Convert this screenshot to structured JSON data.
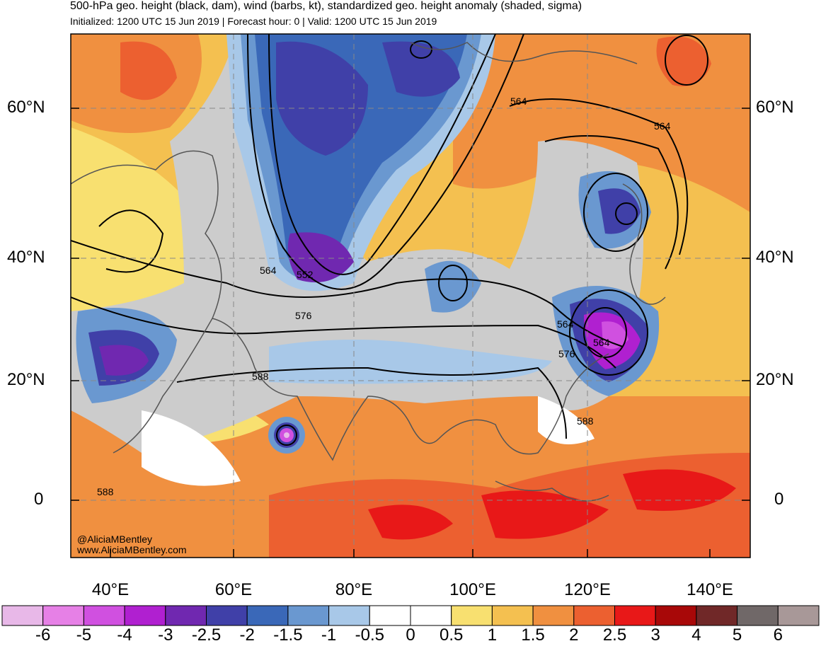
{
  "header": {
    "title": "500-hPa geo. height (black, dam), wind (barbs, kt), standardized geo. height anomaly (shaded, sigma)",
    "subtitle": "Initialized: 1200 UTC 15 Jun 2019 | Forecast hour: 0 | Valid: 1200 UTC 15 Jun 2019"
  },
  "axes": {
    "lat_labels": [
      "60°N",
      "40°N",
      "20°N",
      "0"
    ],
    "lon_labels": [
      "40°E",
      "60°E",
      "80°E",
      "100°E",
      "120°E",
      "140°E"
    ]
  },
  "contour_labels": [
    "564",
    "552",
    "564",
    "576",
    "588",
    "564",
    "564",
    "564",
    "576",
    "588",
    "588"
  ],
  "credit": {
    "handle": "@AliciaMBentley",
    "site": "www.AliciaMBentley.com"
  },
  "colorbar": {
    "labels": [
      "-6",
      "-5",
      "-4",
      "-3",
      "-2.5",
      "-2",
      "-1.5",
      "-1",
      "-0.5",
      "0",
      "0.5",
      "1",
      "1.5",
      "2",
      "2.5",
      "3",
      "4",
      "5",
      "6"
    ],
    "colors": [
      "#e8b8e8",
      "#e680e6",
      "#d050e0",
      "#b020d0",
      "#7028b0",
      "#4040a8",
      "#3a68b8",
      "#6a98d0",
      "#a8c8e8",
      "#ffffff",
      "#ffffff",
      "#f8e070",
      "#f4c050",
      "#f09040",
      "#ec6030",
      "#e81818",
      "#a80808",
      "#702828",
      "#706868",
      "#a89898"
    ]
  }
}
